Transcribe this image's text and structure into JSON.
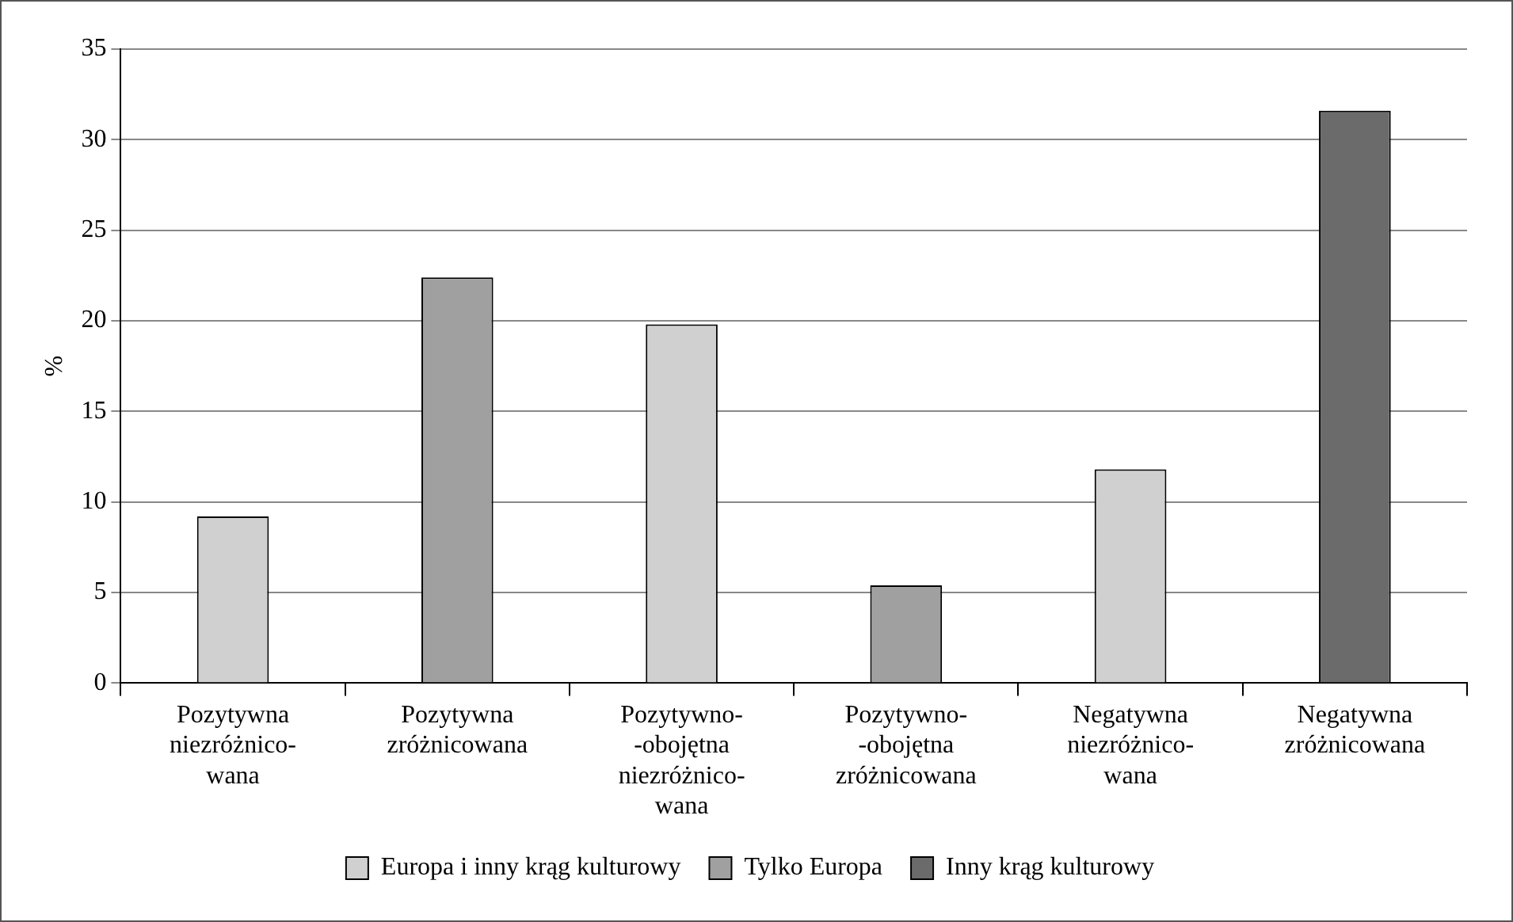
{
  "chart_data": {
    "type": "bar",
    "ylabel": "%",
    "categories": [
      "Pozytywna\nniezróżnico-\nwana",
      "Pozytywna\nzróżnicowana",
      "Pozytywno-\n-obojętna\nniezróżnico-\nwana",
      "Pozytywno-\n-obojętna\nzróżnicowana",
      "Negatywna\nniezróżnico-\nwana",
      "Negatywna\nzróżnicowana"
    ],
    "series": [
      {
        "name": "Europa i inny krąg kulturowy",
        "color": "#d0d0d0",
        "values": [
          9.2,
          null,
          19.8,
          null,
          11.8,
          null
        ]
      },
      {
        "name": "Tylko Europa",
        "color": "#a0a0a0",
        "values": [
          null,
          22.4,
          null,
          5.4,
          null,
          null
        ]
      },
      {
        "name": "Inny krąg kulturowy",
        "color": "#6b6b6b",
        "values": [
          null,
          null,
          null,
          null,
          null,
          31.6
        ]
      }
    ],
    "ylim": [
      0,
      35
    ],
    "yticks": [
      0,
      5,
      10,
      15,
      20,
      25,
      30,
      35
    ],
    "grid": "y",
    "legend": "bottom"
  }
}
